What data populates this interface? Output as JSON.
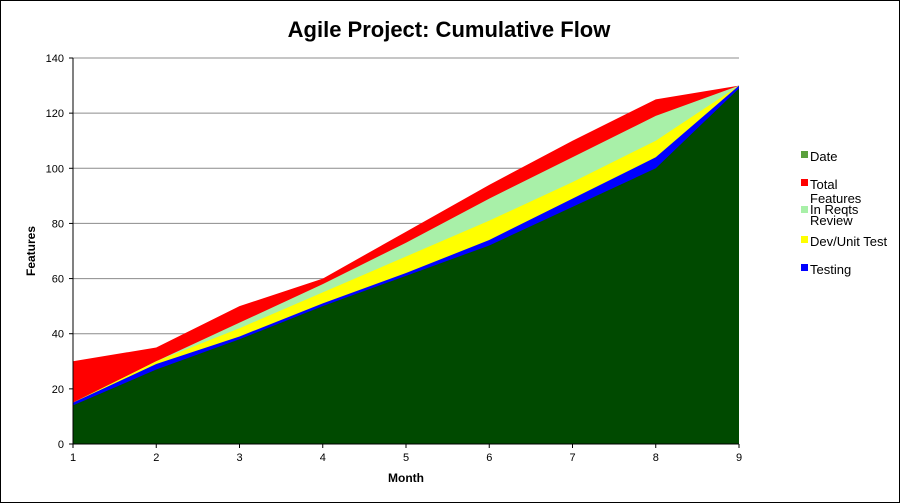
{
  "chart_data": {
    "type": "area",
    "title": "Agile Project: Cumulative Flow",
    "xlabel": "Month",
    "ylabel": "Features",
    "x": [
      1,
      2,
      3,
      4,
      5,
      6,
      7,
      8,
      9
    ],
    "xlim": [
      1,
      9
    ],
    "ylim": [
      0,
      140
    ],
    "yticks": [
      0,
      20,
      40,
      60,
      80,
      100,
      120,
      140
    ],
    "grid": true,
    "legend_position": "right",
    "series": [
      {
        "name": "Total",
        "color": "#ff0000",
        "values": [
          30,
          35,
          50,
          60,
          77,
          94,
          110,
          125,
          130
        ]
      },
      {
        "name": "Features In Reqts Review",
        "color": "#a8f0a8",
        "values": [
          15,
          30,
          44,
          58,
          73,
          89,
          104,
          119,
          130
        ]
      },
      {
        "name": "Dev/Unit Test",
        "color": "#ffff00",
        "values": [
          15,
          30,
          42,
          55,
          68,
          81,
          95,
          110,
          130
        ]
      },
      {
        "name": "Testing",
        "color": "#0000ff",
        "values": [
          15,
          29,
          39,
          51,
          62,
          74,
          89,
          104,
          130
        ]
      },
      {
        "name": "Date",
        "color": "#004a00",
        "values": [
          14,
          27,
          38,
          50,
          61,
          72,
          86,
          100,
          129
        ]
      }
    ],
    "legend": [
      {
        "label": "Date",
        "color": "#5aa03c"
      },
      {
        "label": "Total",
        "color": "#ff0000"
      },
      {
        "label": "Features In Reqts Review",
        "color": "#a8f0a8"
      },
      {
        "label": "Dev/Unit Test",
        "color": "#ffff00"
      },
      {
        "label": "Testing",
        "color": "#0000ff"
      }
    ]
  }
}
